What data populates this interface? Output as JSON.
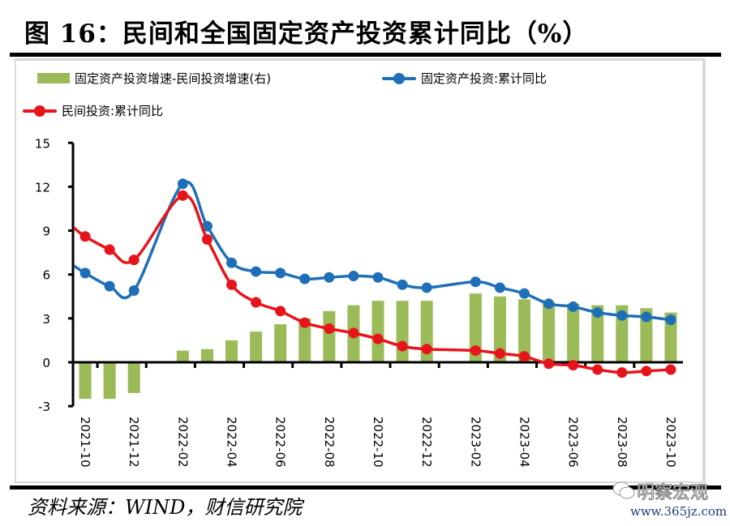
{
  "figure": {
    "title": "图 16：民间和全国固定资产投资累计同比（%）",
    "source": "资料来源：WIND，财信研究院",
    "watermark_name": "明察宏观",
    "watermark_url": "www.365jz.com"
  },
  "legend": {
    "items": [
      {
        "label": "固定资产投资增速-民间投资增速(右)",
        "type": "bar",
        "color": "#9bbb59"
      },
      {
        "label": "固定资产投资:累计同比",
        "type": "line",
        "color": "#1f6fb8"
      },
      {
        "label": "民间投资:累计同比",
        "type": "line",
        "color": "#e8141b"
      }
    ]
  },
  "chart_data": {
    "type": "bar+line",
    "title": "民间和全国固定资产投资累计同比（%）",
    "xlabel": "",
    "ylabel": "%",
    "ylim": [
      -3,
      15
    ],
    "yticks": [
      -3,
      0,
      3,
      6,
      9,
      12,
      15
    ],
    "ytick_highlight": {
      "value": -3,
      "color": "#e8141b"
    },
    "legend_position": "top",
    "grid": false,
    "categories": [
      "2021-10",
      "2021-11",
      "2021-12",
      "2022-01",
      "2022-02",
      "2022-03",
      "2022-04",
      "2022-05",
      "2022-06",
      "2022-07",
      "2022-08",
      "2022-09",
      "2022-10",
      "2022-11",
      "2022-12",
      "2023-01",
      "2023-02",
      "2023-03",
      "2023-04",
      "2023-05",
      "2023-06",
      "2023-07",
      "2023-08",
      "2023-09",
      "2023-10"
    ],
    "tick_labels": [
      "2021-10",
      "2021-12",
      "2022-02",
      "2022-04",
      "2022-06",
      "2022-08",
      "2022-10",
      "2022-12",
      "2023-02",
      "2023-04",
      "2023-06",
      "2023-08",
      "2023-10"
    ],
    "series": [
      {
        "name": "固定资产投资增速-民间投资增速(右)",
        "type": "bar",
        "color": "#9bbb59",
        "values": [
          -2.5,
          -2.5,
          -2.1,
          null,
          0.8,
          0.9,
          1.5,
          2.1,
          2.6,
          3.0,
          3.5,
          3.9,
          4.2,
          4.2,
          4.2,
          null,
          4.7,
          4.5,
          4.3,
          4.1,
          4.0,
          3.9,
          3.9,
          3.7,
          3.4
        ]
      },
      {
        "name": "固定资产投资:累计同比",
        "type": "line",
        "color": "#1f6fb8",
        "lead_in_value": 6.6,
        "values": [
          6.1,
          5.2,
          4.9,
          null,
          12.2,
          9.3,
          6.8,
          6.2,
          6.1,
          5.7,
          5.8,
          5.9,
          5.8,
          5.3,
          5.1,
          null,
          5.5,
          5.1,
          4.7,
          4.0,
          3.8,
          3.4,
          3.2,
          3.1,
          2.9
        ]
      },
      {
        "name": "民间投资:累计同比",
        "type": "line",
        "color": "#e8141b",
        "lead_in_value": 9.2,
        "values": [
          8.6,
          7.7,
          7.0,
          null,
          11.4,
          8.4,
          5.3,
          4.1,
          3.5,
          2.7,
          2.3,
          2.0,
          1.6,
          1.1,
          0.9,
          null,
          0.8,
          0.6,
          0.4,
          -0.1,
          -0.2,
          -0.5,
          -0.7,
          -0.6,
          -0.5
        ]
      }
    ]
  }
}
